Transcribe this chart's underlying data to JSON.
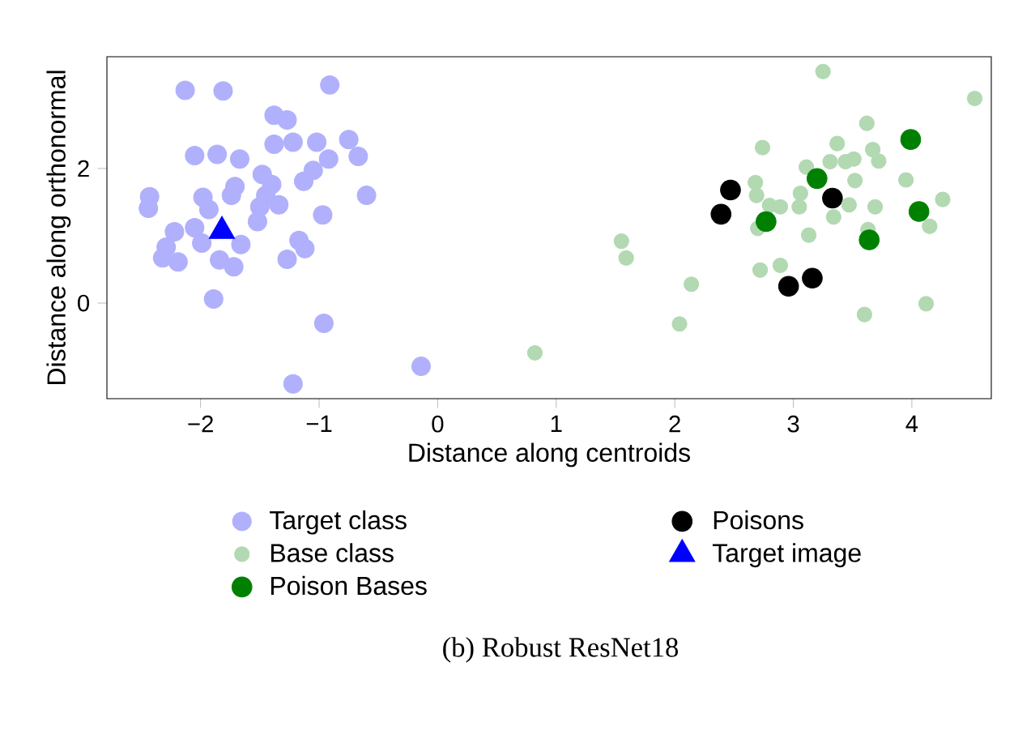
{
  "chart_data": {
    "type": "scatter",
    "title": "(b) Robust ResNet18",
    "xlabel": "Distance along centroids",
    "ylabel": "Distance along orthonormal",
    "xlim": [
      -2.79,
      4.67
    ],
    "ylim": [
      -1.42,
      3.66
    ],
    "xticks": [
      {
        "value": -2,
        "label": "−2"
      },
      {
        "value": -1,
        "label": "−1"
      },
      0,
      1,
      2,
      3,
      4
    ],
    "yticks": [
      0,
      2
    ],
    "grid": false,
    "legend": "bottom",
    "series": [
      {
        "name": "Target class",
        "color": "#b0b0fc",
        "marker": "circle",
        "x": [
          -2.13,
          -1.81,
          -0.91,
          -1.38,
          -1.27,
          -2.05,
          -1.86,
          -1.67,
          -1.38,
          -1.22,
          -1.02,
          -0.75,
          -0.92,
          -0.67,
          -1.05,
          -1.13,
          -1.48,
          -1.4,
          -1.71,
          -1.74,
          -2.43,
          -2.44,
          -1.98,
          -1.93,
          -1.45,
          -1.5,
          -1.34,
          -1.52,
          -0.6,
          -0.97,
          -2.22,
          -2.05,
          -1.99,
          -2.29,
          -2.32,
          -2.19,
          -1.66,
          -1.84,
          -1.72,
          -1.17,
          -1.12,
          -1.27,
          -1.89,
          -0.96,
          -0.14,
          -1.22
        ],
        "values": [
          3.16,
          3.15,
          3.24,
          2.79,
          2.72,
          2.19,
          2.21,
          2.14,
          2.36,
          2.39,
          2.39,
          2.43,
          2.14,
          2.18,
          1.97,
          1.81,
          1.91,
          1.76,
          1.73,
          1.6,
          1.58,
          1.41,
          1.57,
          1.39,
          1.6,
          1.43,
          1.46,
          1.21,
          1.6,
          1.31,
          1.06,
          1.12,
          0.89,
          0.83,
          0.67,
          0.61,
          0.87,
          0.64,
          0.54,
          0.93,
          0.81,
          0.65,
          0.06,
          -0.3,
          -0.94,
          -1.2
        ]
      },
      {
        "name": "Base class",
        "color": "#b2d9b2",
        "marker": "circle",
        "x": [
          3.25,
          4.53,
          3.62,
          2.74,
          3.37,
          3.67,
          3.72,
          3.51,
          3.44,
          3.31,
          3.11,
          3.52,
          3.95,
          2.68,
          2.69,
          2.8,
          2.89,
          3.05,
          3.06,
          3.47,
          3.69,
          4.26,
          3.34,
          2.7,
          3.13,
          3.63,
          4.15,
          1.55,
          1.59,
          2.72,
          2.89,
          2.14,
          4.12,
          3.6,
          2.04,
          0.82
        ],
        "values": [
          3.44,
          3.04,
          2.67,
          2.31,
          2.37,
          2.28,
          2.11,
          2.14,
          2.1,
          2.1,
          2.02,
          1.82,
          1.83,
          1.79,
          1.6,
          1.45,
          1.43,
          1.43,
          1.63,
          1.46,
          1.43,
          1.54,
          1.28,
          1.11,
          1.01,
          1.09,
          1.14,
          0.92,
          0.67,
          0.49,
          0.56,
          0.28,
          -0.01,
          -0.17,
          -0.31,
          -0.74
        ]
      },
      {
        "name": "Poison Bases",
        "color": "#008000",
        "marker": "circle",
        "x": [
          3.99,
          3.2,
          2.77,
          4.06,
          3.64
        ],
        "values": [
          2.43,
          1.85,
          1.21,
          1.36,
          0.94
        ]
      },
      {
        "name": "Poisons",
        "color": "#000000",
        "marker": "circle",
        "x": [
          2.47,
          2.39,
          3.33,
          2.96,
          3.16
        ],
        "values": [
          1.68,
          1.32,
          1.56,
          0.25,
          0.37
        ]
      },
      {
        "name": "Target image",
        "color": "#0000ff",
        "marker": "triangle",
        "x": [
          -1.82
        ],
        "values": [
          1.07
        ]
      }
    ]
  }
}
